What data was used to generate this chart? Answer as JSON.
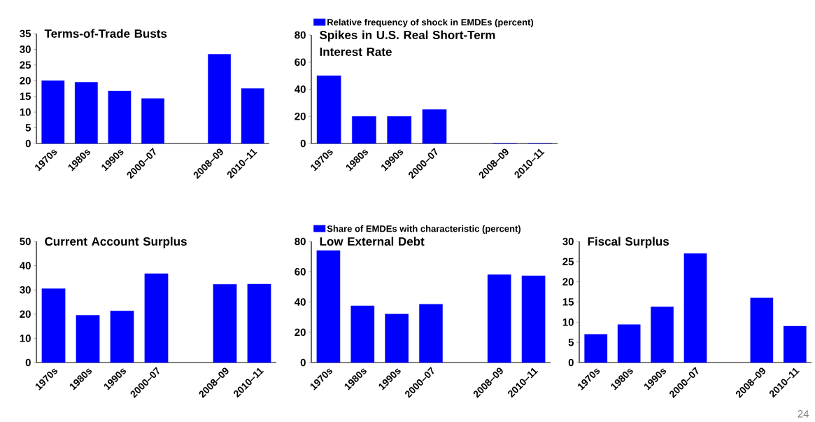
{
  "chart_data": [
    {
      "type": "bar",
      "title": "Terms-of-Trade Busts",
      "categories": [
        "1970s",
        "1980s",
        "1990s",
        "2000–07",
        null,
        "2008–09",
        "2010–11"
      ],
      "series": [
        {
          "color": "#0000ff",
          "values": [
            20,
            19.5,
            16.7,
            14.3,
            null,
            28.4,
            17.5
          ]
        }
      ],
      "ylim": [
        0,
        35
      ],
      "yticks": [
        0,
        5,
        10,
        15,
        20,
        25,
        30,
        35
      ],
      "grid": false,
      "legend": false
    },
    {
      "type": "bar",
      "title": "Spikes in U.S. Real Short-Term Interest Rate",
      "categories": [
        "1970s",
        "1980s",
        "1990s",
        "2000–07",
        null,
        "2008–09",
        "2010–11"
      ],
      "series": [
        {
          "name": "Relative frequency of shock in EMDEs (percent)",
          "color": "#0000ff",
          "values": [
            50,
            20,
            20,
            25,
            null,
            0,
            0
          ]
        }
      ],
      "ylim": [
        0,
        80
      ],
      "yticks": [
        0,
        20,
        40,
        60,
        80
      ],
      "grid": false,
      "legend": "top"
    },
    {
      "type": "bar",
      "title": "Current Account Surplus",
      "categories": [
        "1970s",
        "1980s",
        "1990s",
        "2000–07",
        null,
        "2008–09",
        "2010–11"
      ],
      "series": [
        {
          "color": "#0000ff",
          "values": [
            30.5,
            19.5,
            21.3,
            36.7,
            null,
            32.3,
            32.4
          ]
        }
      ],
      "ylim": [
        0,
        50
      ],
      "yticks": [
        0,
        10,
        20,
        30,
        40,
        50
      ],
      "grid": false,
      "legend": false
    },
    {
      "type": "bar",
      "title": "Low External Debt",
      "categories": [
        "1970s",
        "1980s",
        "1990s",
        "2000–07",
        null,
        "2008–09",
        "2010–11"
      ],
      "series": [
        {
          "name": "Share of EMDEs with characteristic (percent)",
          "color": "#0000ff",
          "values": [
            74,
            37.5,
            32,
            38.5,
            null,
            58,
            57.3
          ]
        }
      ],
      "ylim": [
        0,
        80
      ],
      "yticks": [
        0,
        20,
        40,
        60,
        80
      ],
      "grid": false,
      "legend": "top"
    },
    {
      "type": "bar",
      "title": "Fiscal Surplus",
      "categories": [
        "1970s",
        "1980s",
        "1990s",
        "2000–07",
        null,
        "2008–09",
        "2010–11"
      ],
      "series": [
        {
          "color": "#0000ff",
          "values": [
            7,
            9.4,
            13.8,
            27,
            null,
            16,
            9
          ]
        }
      ],
      "ylim": [
        0,
        30
      ],
      "yticks": [
        0,
        5,
        10,
        15,
        20,
        25,
        30
      ],
      "grid": false,
      "legend": false,
      "annotations": [
        "24"
      ]
    }
  ]
}
